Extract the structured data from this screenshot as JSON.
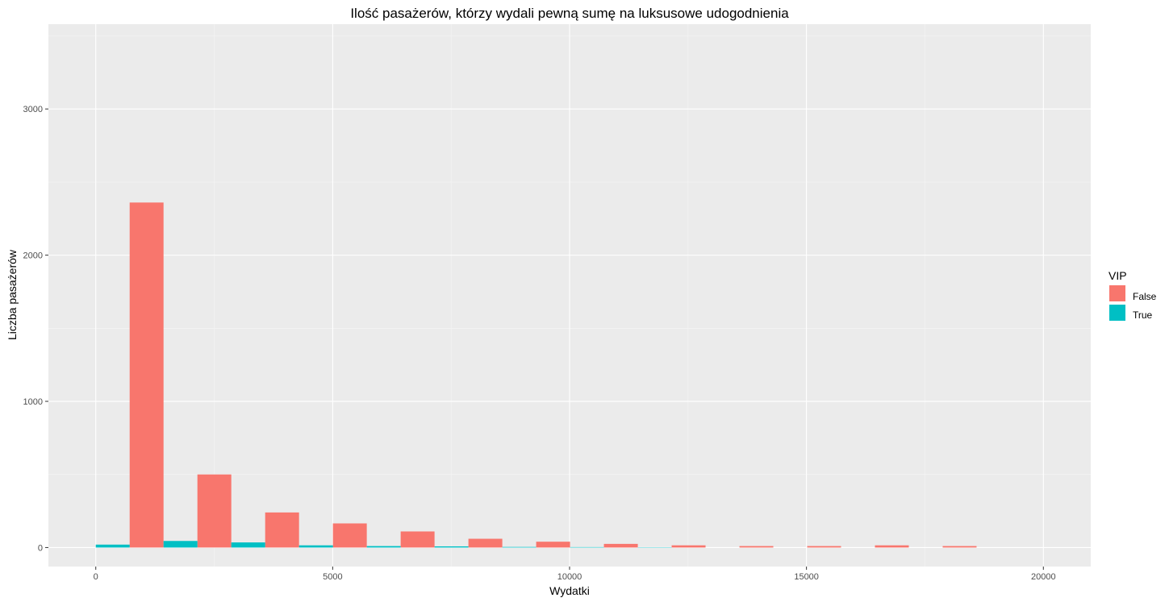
{
  "chart_data": {
    "type": "bar",
    "title": "Ilość pasażerów, którzy wydali pewną sumę na luksusowe udogodnienia",
    "xlabel": "Wydatki",
    "ylabel": "Liczba pasażerów",
    "xlim": [
      -1000,
      21000
    ],
    "ylim": [
      -130,
      3580
    ],
    "x_ticks": [
      0,
      5000,
      10000,
      15000,
      20000
    ],
    "y_ticks": [
      0,
      1000,
      2000,
      3000
    ],
    "bin_width": 1430,
    "bin_centers": [
      0,
      1430,
      2860,
      4290,
      5720,
      7150,
      8580,
      10010,
      11440,
      12870,
      14300,
      15730,
      17160,
      18590,
      20020
    ],
    "series": [
      {
        "name": "False",
        "color": "#F8766D",
        "values": [
          0,
          2360,
          500,
          240,
          165,
          110,
          60,
          40,
          25,
          15,
          10,
          10,
          15,
          10,
          0
        ]
      },
      {
        "name": "True",
        "color": "#00BFC4",
        "values": [
          20,
          45,
          35,
          15,
          10,
          8,
          4,
          3,
          2,
          0,
          0,
          0,
          0,
          0,
          0
        ]
      }
    ],
    "grid": true,
    "legend": {
      "title": "VIP",
      "position": "right"
    }
  }
}
